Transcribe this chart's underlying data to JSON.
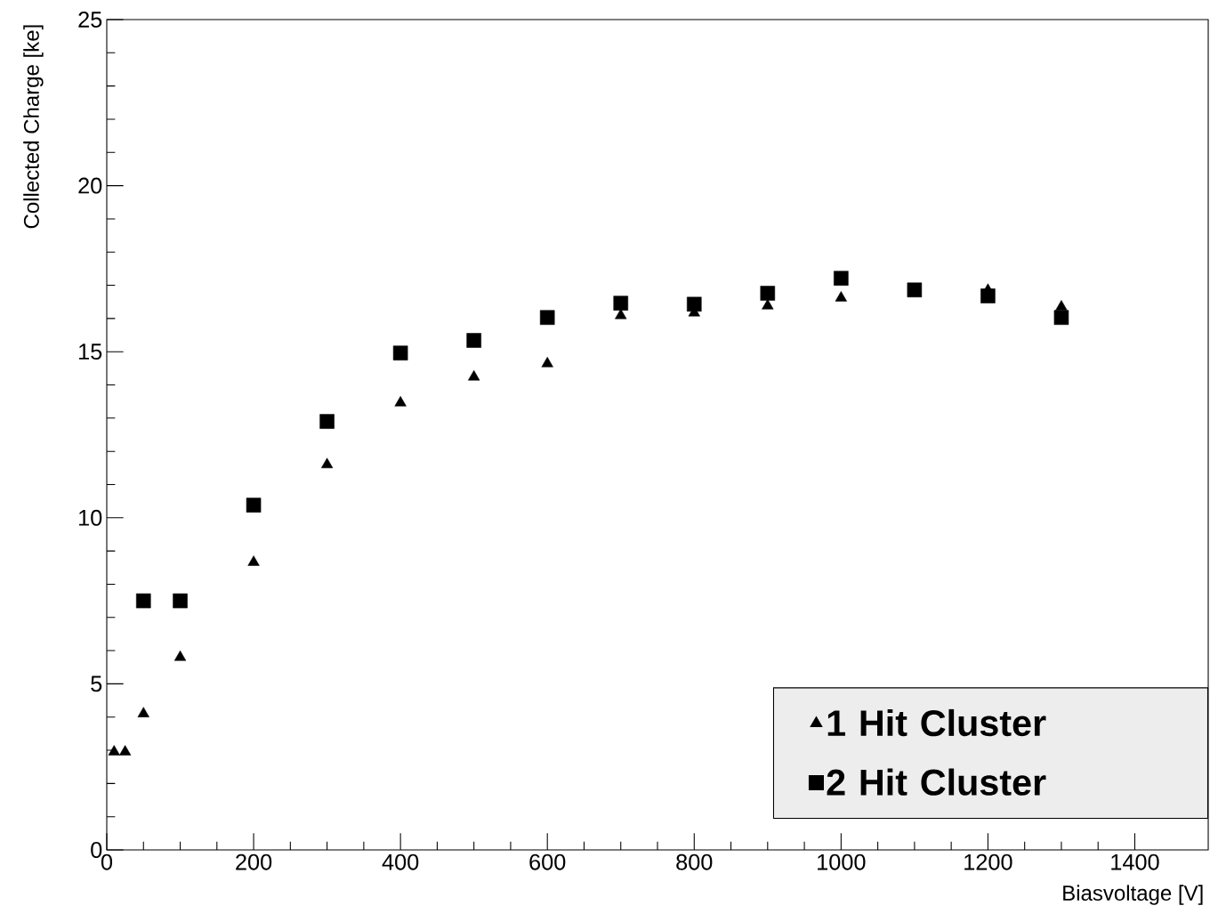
{
  "chart_data": {
    "type": "scatter",
    "xlabel": "Biasvoltage [V]",
    "ylabel": "Collected Charge [ke]",
    "xlim": [
      0,
      1500
    ],
    "ylim": [
      0,
      25
    ],
    "xticks": [
      0,
      200,
      400,
      600,
      800,
      1000,
      1200,
      1400
    ],
    "yticks": [
      0,
      5,
      10,
      15,
      20,
      25
    ],
    "grid": false,
    "legend": "bottom right",
    "series": [
      {
        "name": "1 Hit Cluster",
        "color": "#000000",
        "marker": "triangle",
        "x": [
          10,
          25,
          50,
          100,
          200,
          300,
          400,
          500,
          600,
          700,
          800,
          900,
          1000,
          1100,
          1200,
          1300
        ],
        "values": [
          2.95,
          2.95,
          4.1,
          5.8,
          8.66,
          11.6,
          13.46,
          14.24,
          14.64,
          16.09,
          16.17,
          16.38,
          16.62,
          null,
          16.85,
          16.35
        ]
      },
      {
        "name": "2 Hit Cluster",
        "color": "#000000",
        "marker": "square",
        "x": [
          50,
          100,
          200,
          300,
          400,
          500,
          600,
          700,
          800,
          900,
          1000,
          1100,
          1200,
          1300
        ],
        "values": [
          7.5,
          7.5,
          10.38,
          12.9,
          14.96,
          15.34,
          16.03,
          16.46,
          16.43,
          16.76,
          17.21,
          16.86,
          16.68,
          16.03
        ]
      }
    ]
  }
}
